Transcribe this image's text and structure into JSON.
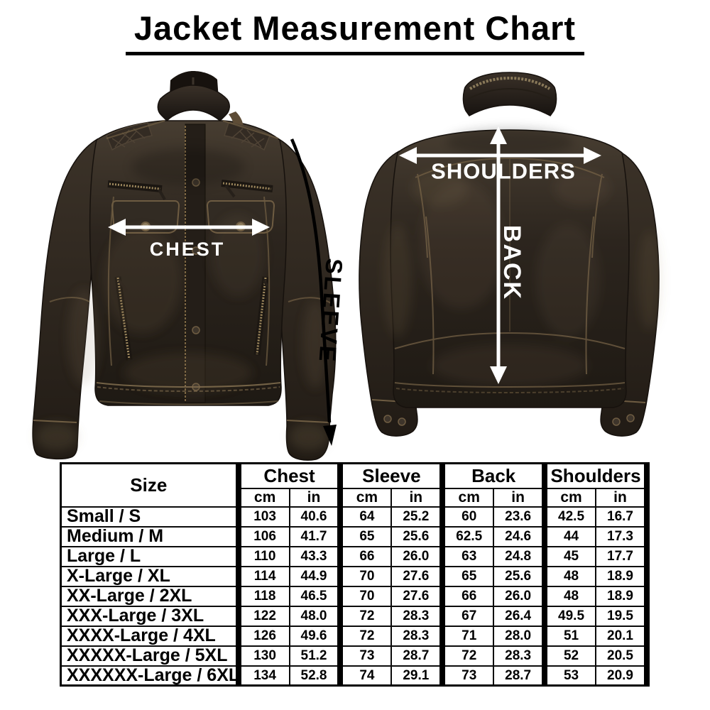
{
  "title": "Jacket Measurement Chart",
  "annotations": {
    "chest": "CHEST",
    "sleeve": "SLEEVE",
    "shoulders": "SHOULDERS",
    "back": "BACK"
  },
  "colors": {
    "arrow_front_chest": "#ffffff",
    "arrow_front_sleeve": "#000000",
    "arrow_back": "#ffffff",
    "table_border": "#000000",
    "leather_dark": "#2a241d",
    "leather_highlight": "#8b7757",
    "background": "#ffffff"
  },
  "table": {
    "size_column_header": "Size",
    "groups": [
      "Chest",
      "Sleeve",
      "Back",
      "Shoulders"
    ],
    "unit_labels": [
      "cm",
      "in"
    ],
    "rows": [
      {
        "size": "Small / S",
        "values": [
          "103",
          "40.6",
          "64",
          "25.2",
          "60",
          "23.6",
          "42.5",
          "16.7"
        ]
      },
      {
        "size": "Medium / M",
        "values": [
          "106",
          "41.7",
          "65",
          "25.6",
          "62.5",
          "24.6",
          "44",
          "17.3"
        ]
      },
      {
        "size": "Large / L",
        "values": [
          "110",
          "43.3",
          "66",
          "26.0",
          "63",
          "24.8",
          "45",
          "17.7"
        ]
      },
      {
        "size": "X-Large / XL",
        "values": [
          "114",
          "44.9",
          "70",
          "27.6",
          "65",
          "25.6",
          "48",
          "18.9"
        ]
      },
      {
        "size": "XX-Large / 2XL",
        "values": [
          "118",
          "46.5",
          "70",
          "27.6",
          "66",
          "26.0",
          "48",
          "18.9"
        ]
      },
      {
        "size": "XXX-Large / 3XL",
        "values": [
          "122",
          "48.0",
          "72",
          "28.3",
          "67",
          "26.4",
          "49.5",
          "19.5"
        ]
      },
      {
        "size": "XXXX-Large / 4XL",
        "values": [
          "126",
          "49.6",
          "72",
          "28.3",
          "71",
          "28.0",
          "51",
          "20.1"
        ]
      },
      {
        "size": "XXXXX-Large / 5XL",
        "values": [
          "130",
          "51.2",
          "73",
          "28.7",
          "72",
          "28.3",
          "52",
          "20.5"
        ]
      },
      {
        "size": "XXXXXX-Large / 6XL",
        "values": [
          "134",
          "52.8",
          "74",
          "29.1",
          "73",
          "28.7",
          "53",
          "20.9"
        ]
      }
    ]
  }
}
